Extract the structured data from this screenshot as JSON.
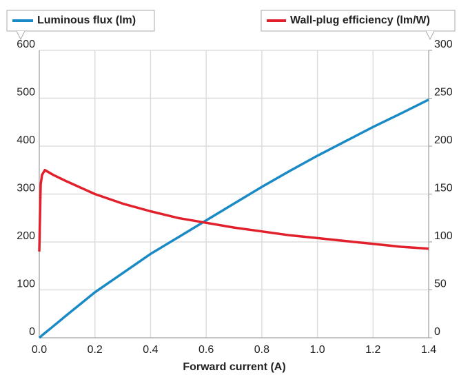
{
  "chart_data": {
    "type": "line",
    "xlabel": "Forward current (A)",
    "x": [
      0,
      0.005,
      0.01,
      0.02,
      0.05,
      0.1,
      0.2,
      0.3,
      0.4,
      0.5,
      0.6,
      0.7,
      0.8,
      0.9,
      1.0,
      1.1,
      1.2,
      1.3,
      1.4
    ],
    "series": [
      {
        "name": "Luminous flux (lm)",
        "color": "#1a8ac6",
        "axis": "y",
        "values": [
          0,
          2.5,
          5,
          10,
          24,
          48,
          95,
          135,
          175,
          210,
          245,
          280,
          315,
          348,
          380,
          410,
          440,
          468,
          497
        ]
      },
      {
        "name": "Wall-plug efficiency (lm/W)",
        "color": "#e2202c",
        "axis": "y2",
        "values": [
          90,
          160,
          170,
          175,
          170,
          163,
          150,
          140,
          132,
          125,
          120,
          115,
          111,
          107,
          104,
          101,
          98,
          95,
          93
        ]
      }
    ],
    "xlim": [
      0,
      1.4
    ],
    "xticks": [
      {
        "value": 0,
        "label": "0.0"
      },
      0.2,
      0.4,
      0.6,
      0.8,
      {
        "value": 1,
        "label": "1.0"
      },
      1.2,
      1.4
    ],
    "ylim": [
      0,
      600
    ],
    "yticks": [
      0,
      100,
      200,
      300,
      400,
      500,
      600
    ],
    "y2lim": [
      0,
      300
    ],
    "y2ticks": [
      0,
      50,
      100,
      150,
      200,
      250,
      300
    ],
    "grid": true
  }
}
